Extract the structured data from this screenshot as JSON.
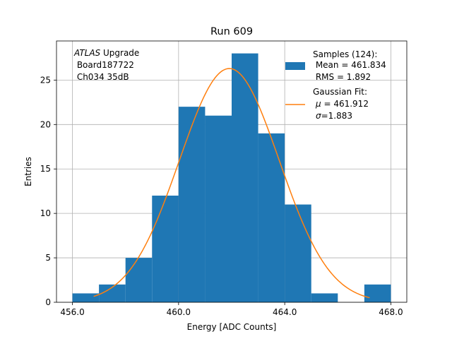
{
  "chart_data": {
    "type": "bar",
    "title": "Run 609",
    "xlabel": "Energy [ADC Counts]",
    "ylabel": "Entries",
    "xlim": [
      455.4,
      468.6
    ],
    "ylim": [
      0,
      29.4
    ],
    "grid": true,
    "x_ticks": [
      456,
      460,
      464,
      468
    ],
    "x_tick_labels": [
      "456.0",
      "460.0",
      "464.0",
      "468.0"
    ],
    "y_ticks": [
      0,
      5,
      10,
      15,
      20,
      25
    ],
    "y_tick_labels": [
      "0",
      "5",
      "10",
      "15",
      "20",
      "25"
    ],
    "bin_edges": [
      456,
      457,
      458,
      459,
      460,
      461,
      462,
      463,
      464,
      465,
      466,
      467,
      468
    ],
    "counts": [
      1,
      2,
      5,
      12,
      22,
      21,
      28,
      19,
      11,
      1,
      0,
      2
    ],
    "bar_color": "#1f77b4",
    "fit": {
      "type": "gaussian",
      "color": "#ff7f0e",
      "amplitude": 26.3,
      "mu": 461.912,
      "sigma": 1.883,
      "x_range": [
        456.8,
        467.2
      ]
    },
    "annotation": {
      "line1_italic": "ATLAS",
      "line1_rest": " Upgrade",
      "line2": " Board187722",
      "line3": " Ch034 35dB"
    },
    "legend": {
      "placement": "top-right",
      "samples_label": "Samples (124):",
      "samples_mean": " Mean = 461.834",
      "samples_rms": " RMS = 1.892",
      "fit_label": "Gaussian Fit:",
      "fit_mu_symbol": "μ",
      "fit_mu_value": " = 461.912",
      "fit_sigma_symbol": "σ",
      "fit_sigma_value": "=1.883"
    }
  }
}
